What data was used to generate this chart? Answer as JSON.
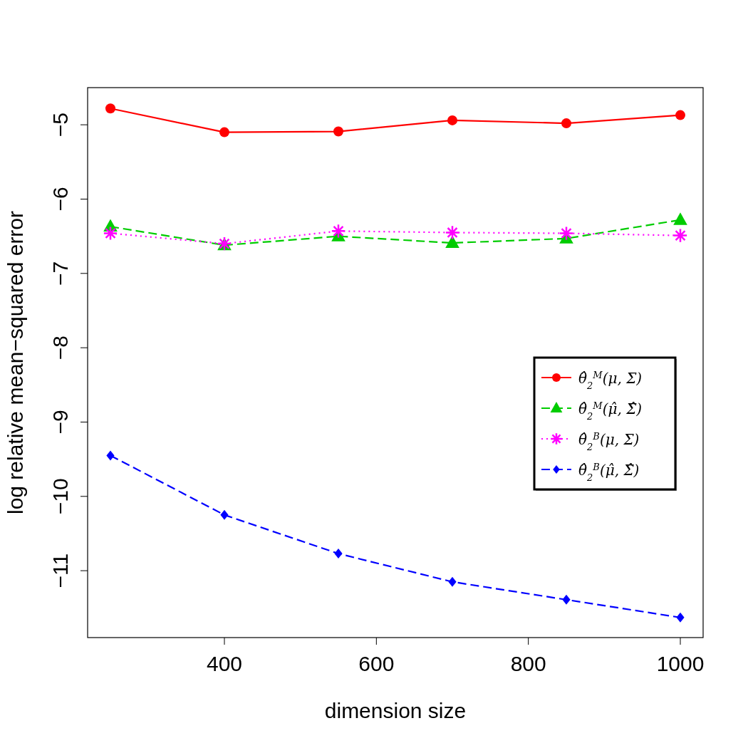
{
  "chart_data": {
    "type": "line",
    "xlabel": "dimension size",
    "ylabel": "log relative mean−squared error",
    "x": [
      250,
      400,
      550,
      700,
      850,
      1000
    ],
    "xlim": [
      220,
      1030
    ],
    "xticks": [
      400,
      600,
      800,
      1000
    ],
    "ylim": [
      -11.9,
      -4.5
    ],
    "yticks": [
      -5,
      -6,
      -7,
      -8,
      -9,
      -10,
      -11
    ],
    "grid": false,
    "legend": "right",
    "series": [
      {
        "name": "θ̂$_{2}$$^{M}$(μ, Σ)",
        "color": "#ff0000",
        "marker": "circle",
        "line_style": "solid",
        "values": [
          -4.78,
          -5.1,
          -5.09,
          -4.94,
          -4.98,
          -4.87
        ]
      },
      {
        "name": "θ̂$_{2}$$^{M}$(μ̂, Σ̂)",
        "color": "#00cc00",
        "marker": "triangle",
        "line_style": "dashed",
        "values": [
          -6.37,
          -6.62,
          -6.5,
          -6.59,
          -6.53,
          -6.28
        ]
      },
      {
        "name": "θ̂$_{2}$$^{B}$(μ, Σ)",
        "color": "#ff00ff",
        "marker": "cross",
        "line_style": "dotted",
        "values": [
          -6.46,
          -6.6,
          -6.43,
          -6.45,
          -6.46,
          -6.49
        ]
      },
      {
        "name": "θ̂$_{2}$$^{B}$(μ̂, Σ̂)",
        "color": "#0000ff",
        "marker": "diamond",
        "line_style": "dashed",
        "values": [
          -9.45,
          -10.25,
          -10.77,
          -11.15,
          -11.39,
          -11.63
        ]
      }
    ]
  }
}
